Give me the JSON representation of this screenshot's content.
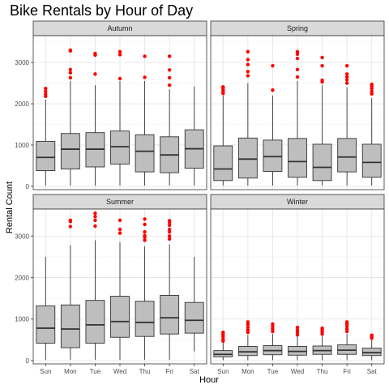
{
  "chart_data": {
    "type": "boxplot",
    "title": "Bike Rentals by Hour of Day",
    "xlabel": "Hour",
    "ylabel": "Rental Count",
    "categories": [
      "Sun",
      "Mon",
      "Tue",
      "Wed",
      "Thu",
      "Fri",
      "Sat"
    ],
    "ylim": [
      -80,
      3650
    ],
    "yticks": [
      0,
      1000,
      2000,
      3000
    ],
    "grid": true,
    "box_fill": "#bebebe",
    "outlier_color": "#ff0000",
    "panel_strip_fill": "#d9d9d9",
    "facets": [
      {
        "name": "Autumn",
        "boxes": [
          {
            "min": 20,
            "q1": 380,
            "median": 700,
            "q3": 1090,
            "max": 2100,
            "outliers": [
              2180,
              2230,
              2300,
              2370
            ]
          },
          {
            "min": 20,
            "q1": 420,
            "median": 900,
            "q3": 1280,
            "max": 2550,
            "outliers": [
              2630,
              2750,
              2830,
              3280,
              3300
            ]
          },
          {
            "min": 20,
            "q1": 470,
            "median": 900,
            "q3": 1300,
            "max": 2450,
            "outliers": [
              2720,
              3180,
              3220
            ]
          },
          {
            "min": 20,
            "q1": 540,
            "median": 960,
            "q3": 1340,
            "max": 2550,
            "outliers": [
              2610,
              3190,
              3260
            ]
          },
          {
            "min": 20,
            "q1": 350,
            "median": 850,
            "q3": 1250,
            "max": 2550,
            "outliers": [
              2640,
              3150
            ]
          },
          {
            "min": 20,
            "q1": 330,
            "median": 760,
            "q3": 1200,
            "max": 2350,
            "outliers": [
              2450,
              2630,
              2820,
              3150
            ]
          },
          {
            "min": 20,
            "q1": 440,
            "median": 910,
            "q3": 1370,
            "max": 2420,
            "outliers": []
          }
        ]
      },
      {
        "name": "Spring",
        "boxes": [
          {
            "min": 20,
            "q1": 140,
            "median": 420,
            "q3": 980,
            "max": 2200,
            "outliers": [
              2250,
              2290,
              2330,
              2380,
              2410
            ]
          },
          {
            "min": 20,
            "q1": 200,
            "median": 660,
            "q3": 1170,
            "max": 2500,
            "outliers": [
              2680,
              2780,
              2950,
              3070,
              3260
            ]
          },
          {
            "min": 20,
            "q1": 360,
            "median": 720,
            "q3": 1120,
            "max": 2200,
            "outliers": [
              2330,
              2920
            ]
          },
          {
            "min": 20,
            "q1": 220,
            "median": 600,
            "q3": 1160,
            "max": 2550,
            "outliers": [
              2650,
              2830,
              3100,
              3200,
              3260
            ]
          },
          {
            "min": 20,
            "q1": 140,
            "median": 460,
            "q3": 1020,
            "max": 2450,
            "outliers": [
              2530,
              2570,
              2920,
              3120
            ]
          },
          {
            "min": 20,
            "q1": 350,
            "median": 710,
            "q3": 1160,
            "max": 2400,
            "outliers": [
              2500,
              2580,
              2650,
              2720,
              2920
            ]
          },
          {
            "min": 20,
            "q1": 220,
            "median": 580,
            "q3": 1020,
            "max": 2140,
            "outliers": [
              2240,
              2300,
              2370,
              2430,
              2470
            ]
          }
        ]
      },
      {
        "name": "Summer",
        "boxes": [
          {
            "min": 20,
            "q1": 420,
            "median": 780,
            "q3": 1320,
            "max": 2500,
            "outliers": []
          },
          {
            "min": 20,
            "q1": 310,
            "median": 760,
            "q3": 1340,
            "max": 2780,
            "outliers": [
              3230,
              3350,
              3380
            ]
          },
          {
            "min": 20,
            "q1": 420,
            "median": 860,
            "q3": 1450,
            "max": 2900,
            "outliers": [
              3240,
              3380,
              3470,
              3550
            ]
          },
          {
            "min": 20,
            "q1": 560,
            "median": 940,
            "q3": 1550,
            "max": 2850,
            "outliers": [
              3070,
              3160,
              3380
            ]
          },
          {
            "min": 20,
            "q1": 580,
            "median": 920,
            "q3": 1430,
            "max": 2750,
            "outliers": [
              2900,
              2970,
              3010,
              3100,
              3280,
              3410
            ]
          },
          {
            "min": 20,
            "q1": 640,
            "median": 1030,
            "q3": 1570,
            "max": 2800,
            "outliers": [
              2930,
              3000,
              3100,
              3160,
              3260,
              3330,
              3370
            ]
          },
          {
            "min": 220,
            "q1": 660,
            "median": 970,
            "q3": 1400,
            "max": 2500,
            "outliers": []
          }
        ]
      },
      {
        "name": "Winter",
        "boxes": [
          {
            "min": 10,
            "q1": 90,
            "median": 150,
            "q3": 240,
            "max": 440,
            "outliers": [
              470,
              520,
              580,
              630,
              680
            ]
          },
          {
            "min": 10,
            "q1": 120,
            "median": 210,
            "q3": 340,
            "max": 620,
            "outliers": [
              680,
              740,
              800,
              870,
              930
            ]
          },
          {
            "min": 10,
            "q1": 140,
            "median": 240,
            "q3": 360,
            "max": 640,
            "outliers": [
              700,
              760,
              820,
              880
            ]
          },
          {
            "min": 10,
            "q1": 130,
            "median": 220,
            "q3": 340,
            "max": 580,
            "outliers": [
              620,
              680,
              740,
              800
            ]
          },
          {
            "min": 10,
            "q1": 150,
            "median": 240,
            "q3": 350,
            "max": 600,
            "outliers": [
              640,
              690,
              740,
              780
            ]
          },
          {
            "min": 10,
            "q1": 150,
            "median": 250,
            "q3": 380,
            "max": 640,
            "outliers": [
              700,
              760,
              820,
              880,
              930
            ]
          },
          {
            "min": 10,
            "q1": 120,
            "median": 190,
            "q3": 300,
            "max": 500,
            "outliers": [
              540,
              580,
              610
            ]
          }
        ]
      }
    ]
  }
}
